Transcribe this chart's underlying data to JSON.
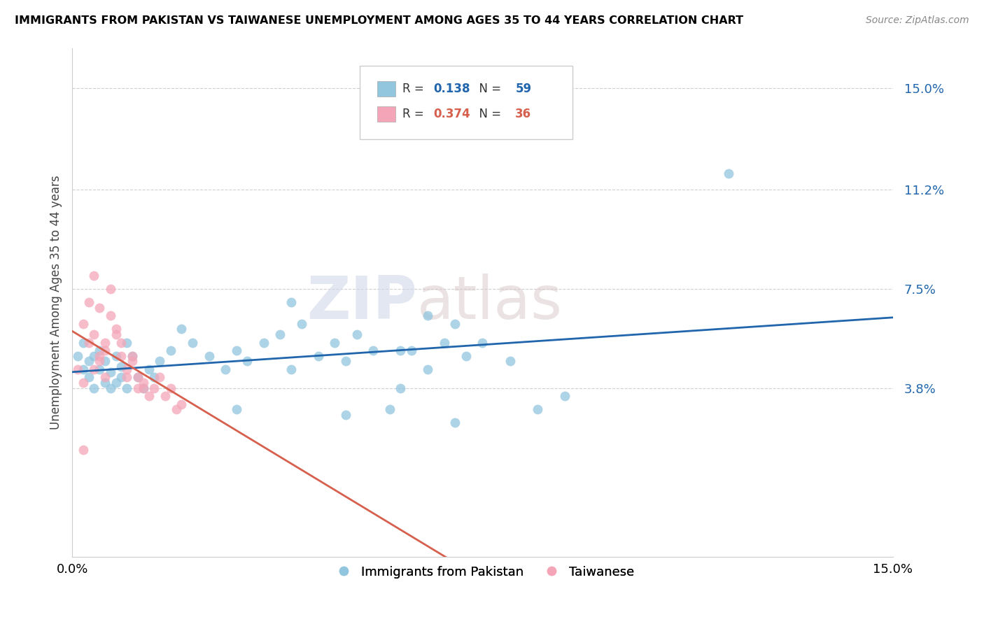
{
  "title": "IMMIGRANTS FROM PAKISTAN VS TAIWANESE UNEMPLOYMENT AMONG AGES 35 TO 44 YEARS CORRELATION CHART",
  "source": "Source: ZipAtlas.com",
  "ylabel": "Unemployment Among Ages 35 to 44 years",
  "legend1_label": "Immigrants from Pakistan",
  "legend2_label": "Taiwanese",
  "R1": 0.138,
  "N1": 59,
  "R2": 0.374,
  "N2": 36,
  "blue_color": "#92c5de",
  "pink_color": "#f4a6b8",
  "blue_line_color": "#2166ac",
  "pink_line_color": "#d6604d",
  "yticks": [
    0.038,
    0.075,
    0.112,
    0.15
  ],
  "ytick_labels": [
    "3.8%",
    "7.5%",
    "11.2%",
    "15.0%"
  ],
  "xlim": [
    0.0,
    0.15
  ],
  "ylim": [
    -0.025,
    0.165
  ],
  "blue_scatter_x": [
    0.001,
    0.002,
    0.002,
    0.003,
    0.003,
    0.004,
    0.004,
    0.005,
    0.005,
    0.006,
    0.006,
    0.007,
    0.007,
    0.008,
    0.008,
    0.009,
    0.009,
    0.01,
    0.01,
    0.011,
    0.012,
    0.013,
    0.014,
    0.015,
    0.016,
    0.018,
    0.02,
    0.022,
    0.025,
    0.028,
    0.03,
    0.032,
    0.035,
    0.038,
    0.04,
    0.042,
    0.045,
    0.048,
    0.05,
    0.052,
    0.055,
    0.058,
    0.06,
    0.062,
    0.065,
    0.068,
    0.07,
    0.072,
    0.075,
    0.08,
    0.085,
    0.09,
    0.065,
    0.04,
    0.06,
    0.03,
    0.05,
    0.07,
    0.12
  ],
  "blue_scatter_y": [
    0.05,
    0.045,
    0.055,
    0.042,
    0.048,
    0.05,
    0.038,
    0.045,
    0.052,
    0.04,
    0.048,
    0.038,
    0.044,
    0.04,
    0.05,
    0.042,
    0.046,
    0.038,
    0.055,
    0.05,
    0.042,
    0.038,
    0.045,
    0.042,
    0.048,
    0.052,
    0.06,
    0.055,
    0.05,
    0.045,
    0.052,
    0.048,
    0.055,
    0.058,
    0.045,
    0.062,
    0.05,
    0.055,
    0.048,
    0.058,
    0.052,
    0.03,
    0.038,
    0.052,
    0.045,
    0.055,
    0.062,
    0.05,
    0.055,
    0.048,
    0.03,
    0.035,
    0.065,
    0.07,
    0.052,
    0.03,
    0.028,
    0.025,
    0.118
  ],
  "pink_scatter_x": [
    0.001,
    0.002,
    0.003,
    0.004,
    0.005,
    0.006,
    0.007,
    0.008,
    0.009,
    0.01,
    0.011,
    0.012,
    0.013,
    0.014,
    0.015,
    0.016,
    0.017,
    0.018,
    0.019,
    0.02,
    0.002,
    0.003,
    0.004,
    0.005,
    0.006,
    0.007,
    0.008,
    0.009,
    0.01,
    0.011,
    0.012,
    0.013,
    0.004,
    0.005,
    0.006,
    0.002
  ],
  "pink_scatter_y": [
    0.045,
    0.04,
    0.055,
    0.045,
    0.05,
    0.042,
    0.065,
    0.058,
    0.05,
    0.042,
    0.048,
    0.038,
    0.04,
    0.035,
    0.038,
    0.042,
    0.035,
    0.038,
    0.03,
    0.032,
    0.062,
    0.07,
    0.058,
    0.048,
    0.052,
    0.075,
    0.06,
    0.055,
    0.045,
    0.05,
    0.042,
    0.038,
    0.08,
    0.068,
    0.055,
    0.015
  ]
}
